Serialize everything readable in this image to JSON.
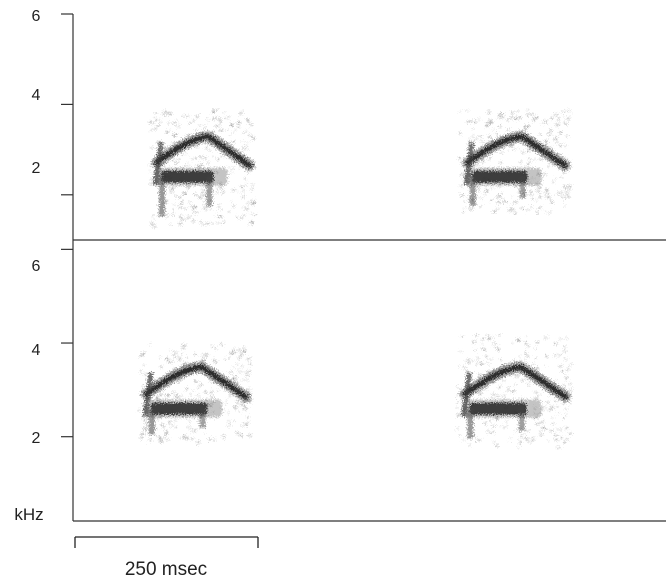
{
  "chart_data": {
    "type": "spectrogram",
    "panels": [
      {
        "id": "top",
        "ylim": [
          1,
          6
        ],
        "yticks": [
          2,
          4,
          6
        ],
        "ytick_labels": [
          "2",
          "4",
          "6"
        ],
        "ylabel": "",
        "calls": [
          {
            "start_ms": 103,
            "end_ms": 247,
            "freq_low": 1.3,
            "freq_high": 3.9,
            "dark_band": 2.4,
            "upper_band": 3.3
          },
          {
            "start_ms": 527,
            "end_ms": 678,
            "freq_low": 1.6,
            "freq_high": 3.9,
            "dark_band": 2.4,
            "upper_band": 3.3
          }
        ]
      },
      {
        "id": "bottom",
        "ylim": [
          0.2,
          6.2
        ],
        "yticks": [
          2,
          4,
          6
        ],
        "ytick_labels": [
          "2",
          "4",
          "6"
        ],
        "ylabel": "kHz",
        "calls": [
          {
            "start_ms": 88,
            "end_ms": 242,
            "freq_low": 1.9,
            "freq_high": 4.0,
            "dark_band": 2.6,
            "upper_band": 3.5
          },
          {
            "start_ms": 523,
            "end_ms": 679,
            "freq_low": 1.8,
            "freq_high": 4.2,
            "dark_band": 2.6,
            "upper_band": 3.5
          }
        ]
      }
    ],
    "time_scale_bar": {
      "duration_ms": 250,
      "label": "250 msec"
    },
    "ink_color": "#1a1a1a",
    "axis_color": "#333333"
  }
}
